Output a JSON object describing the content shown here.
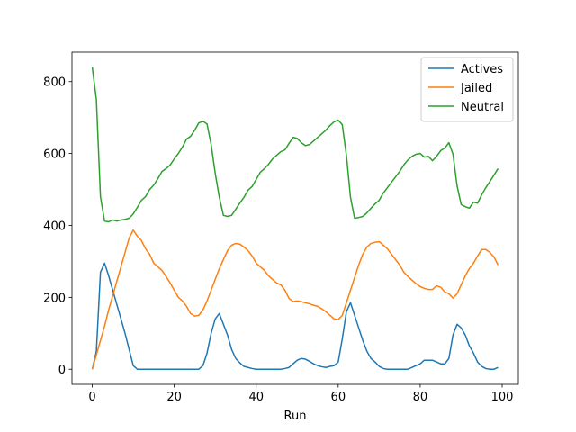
{
  "chart_data": {
    "type": "line",
    "xlabel": "Run",
    "x": [
      0,
      1,
      2,
      3,
      4,
      5,
      6,
      7,
      8,
      9,
      10,
      11,
      12,
      13,
      14,
      15,
      16,
      17,
      18,
      19,
      20,
      21,
      22,
      23,
      24,
      25,
      26,
      27,
      28,
      29,
      30,
      31,
      32,
      33,
      34,
      35,
      36,
      37,
      38,
      39,
      40,
      41,
      42,
      43,
      44,
      45,
      46,
      47,
      48,
      49,
      50,
      51,
      52,
      53,
      54,
      55,
      56,
      57,
      58,
      59,
      60,
      61,
      62,
      63,
      64,
      65,
      66,
      67,
      68,
      69,
      70,
      71,
      72,
      73,
      74,
      75,
      76,
      77,
      78,
      79,
      80,
      81,
      82,
      83,
      84,
      85,
      86,
      87,
      88,
      89,
      90,
      91,
      92,
      93,
      94,
      95,
      96,
      97,
      98,
      99
    ],
    "series": [
      {
        "name": "Actives",
        "color": "#1f77b4",
        "values": [
          0,
          50,
          270,
          295,
          260,
          220,
          180,
          140,
          100,
          55,
          10,
          0,
          0,
          0,
          0,
          0,
          0,
          0,
          0,
          0,
          0,
          0,
          0,
          0,
          0,
          0,
          0,
          10,
          45,
          100,
          140,
          155,
          125,
          95,
          55,
          30,
          18,
          8,
          5,
          2,
          0,
          0,
          0,
          0,
          0,
          0,
          0,
          2,
          5,
          15,
          25,
          30,
          28,
          22,
          15,
          10,
          7,
          5,
          8,
          10,
          20,
          85,
          160,
          185,
          150,
          115,
          80,
          50,
          30,
          20,
          8,
          2,
          0,
          0,
          0,
          0,
          0,
          0,
          5,
          10,
          15,
          25,
          25,
          25,
          20,
          15,
          15,
          30,
          95,
          125,
          115,
          95,
          65,
          45,
          20,
          8,
          2,
          0,
          0,
          5
        ]
      },
      {
        "name": "Jailed",
        "color": "#ff7f0e",
        "values": [
          0,
          40,
          80,
          120,
          165,
          205,
          245,
          285,
          325,
          365,
          387,
          370,
          358,
          335,
          320,
          295,
          285,
          275,
          258,
          240,
          220,
          200,
          190,
          175,
          155,
          148,
          150,
          165,
          190,
          220,
          250,
          280,
          305,
          330,
          345,
          350,
          348,
          340,
          330,
          315,
          295,
          285,
          275,
          260,
          250,
          240,
          235,
          220,
          197,
          188,
          190,
          188,
          185,
          182,
          178,
          175,
          168,
          160,
          150,
          140,
          138,
          150,
          185,
          220,
          255,
          290,
          320,
          340,
          350,
          353,
          355,
          345,
          335,
          320,
          305,
          290,
          270,
          258,
          248,
          238,
          230,
          225,
          222,
          222,
          232,
          228,
          215,
          210,
          198,
          210,
          235,
          260,
          280,
          295,
          315,
          333,
          333,
          325,
          312,
          290
        ]
      },
      {
        "name": "Neutral",
        "color": "#2ca02c",
        "values": [
          840,
          750,
          480,
          412,
          410,
          415,
          412,
          415,
          417,
          420,
          432,
          450,
          470,
          480,
          500,
          512,
          530,
          550,
          558,
          568,
          585,
          600,
          618,
          640,
          648,
          665,
          685,
          690,
          682,
          625,
          545,
          478,
          428,
          425,
          428,
          445,
          462,
          478,
          498,
          508,
          528,
          548,
          558,
          570,
          585,
          595,
          605,
          610,
          628,
          645,
          642,
          630,
          622,
          625,
          635,
          645,
          655,
          665,
          678,
          688,
          693,
          680,
          595,
          478,
          420,
          422,
          425,
          435,
          448,
          460,
          470,
          490,
          505,
          520,
          535,
          550,
          568,
          582,
          592,
          598,
          600,
          590,
          592,
          580,
          592,
          608,
          615,
          630,
          598,
          510,
          458,
          452,
          448,
          465,
          462,
          485,
          505,
          522,
          540,
          558
        ]
      }
    ],
    "xlim": [
      -4.95,
      103.95
    ],
    "xticks": [
      0,
      20,
      40,
      60,
      80,
      100
    ],
    "ylim": [
      -42,
      882
    ],
    "yticks": [
      0,
      200,
      400,
      600,
      800
    ],
    "legend": "upper right"
  }
}
